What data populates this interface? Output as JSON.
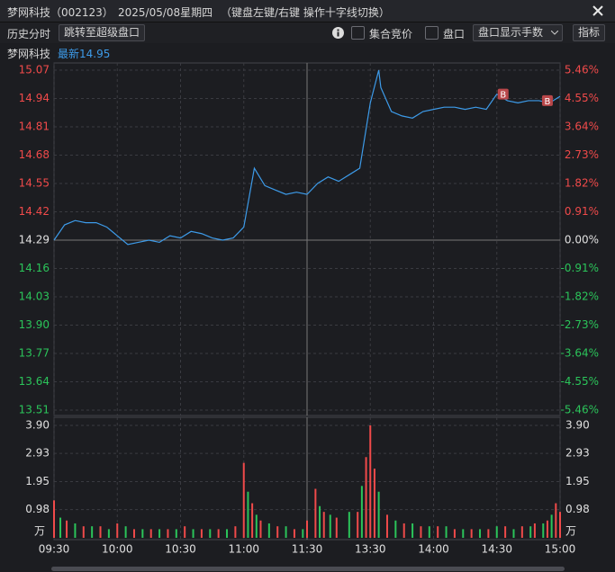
{
  "header": {
    "title": "梦网科技（002123）",
    "date": "2025/05/08星期四",
    "hint": "（键盘左键/右键 操作十字线切换）"
  },
  "toolbar": {
    "label": "历史分时",
    "jump": "跳转至超级盘口",
    "auction": "集合竞价",
    "orderbook": "盘口",
    "display": "盘口显示手数",
    "indicator": "指标"
  },
  "chart_data": [
    {
      "type": "line",
      "name": "梦网科技",
      "latest": "最新14.95",
      "baseline": 14.29,
      "series": [
        {
          "color": "#3d9be9",
          "x": [
            0,
            5,
            10,
            15,
            20,
            25,
            30,
            35,
            40,
            45,
            50,
            55,
            60,
            65,
            70,
            75,
            80,
            85,
            90,
            95,
            100,
            105,
            110,
            115,
            120,
            125,
            130,
            135,
            140,
            145,
            150,
            154,
            155,
            160,
            165,
            170,
            175,
            180,
            185,
            190,
            195,
            200,
            205,
            210,
            215,
            220,
            225,
            230,
            235,
            240
          ],
          "values": [
            14.29,
            14.36,
            14.38,
            14.37,
            14.37,
            14.35,
            14.31,
            14.27,
            14.28,
            14.29,
            14.28,
            14.31,
            14.3,
            14.33,
            14.32,
            14.3,
            14.29,
            14.3,
            14.35,
            14.62,
            14.54,
            14.52,
            14.5,
            14.51,
            14.5,
            14.55,
            14.58,
            14.56,
            14.59,
            14.62,
            14.92,
            15.07,
            14.99,
            14.88,
            14.86,
            14.85,
            14.88,
            14.89,
            14.9,
            14.9,
            14.89,
            14.9,
            14.89,
            14.96,
            14.93,
            14.92,
            14.93,
            14.93,
            14.92,
            14.95
          ]
        }
      ],
      "xlim": [
        0,
        240
      ],
      "ylim": [
        13.51,
        15.07
      ],
      "yticks": [
        15.07,
        14.94,
        14.81,
        14.68,
        14.55,
        14.42,
        14.29,
        14.16,
        14.03,
        {
          "value": 13.9,
          "label": "13.90"
        },
        13.77,
        13.64,
        13.51
      ],
      "y2lim": [
        -5.46,
        5.46
      ],
      "y2ticks": [
        {
          "value": 5.46,
          "label": "5.46%"
        },
        {
          "value": 4.55,
          "label": "4.55%"
        },
        {
          "value": 3.64,
          "label": "3.64%"
        },
        {
          "value": 2.73,
          "label": "2.73%"
        },
        {
          "value": 1.82,
          "label": "1.82%"
        },
        {
          "value": 0.91,
          "label": "0.91%"
        },
        {
          "value": 0,
          "label": "0.00%"
        },
        {
          "value": -0.91,
          "label": "-0.91%"
        },
        {
          "value": -1.82,
          "label": "-1.82%"
        },
        {
          "value": -2.73,
          "label": "-2.73%"
        },
        {
          "value": -3.64,
          "label": "-3.64%"
        },
        {
          "value": -4.55,
          "label": "-4.55%"
        },
        {
          "value": -5.46,
          "label": "-5.46%"
        }
      ],
      "annotations": [
        {
          "x": 213,
          "y": 14.96,
          "label": "B"
        },
        {
          "x": 234,
          "y": 14.93,
          "label": "B"
        }
      ],
      "grid": true
    },
    {
      "type": "bar",
      "y_unit": "万",
      "series": [
        {
          "color": "#f04a4a",
          "x": [
            0,
            6,
            14,
            22,
            30,
            38,
            46,
            54,
            62,
            70,
            78,
            86,
            90,
            94,
            98,
            106,
            114,
            120,
            124,
            128,
            134,
            144,
            148,
            150,
            152,
            158,
            166,
            174,
            182,
            190,
            198,
            206,
            214,
            222,
            228,
            234,
            238,
            240
          ],
          "values": [
            1.3,
            0.6,
            0.4,
            0.4,
            0.5,
            0.3,
            0.3,
            0.3,
            0.4,
            0.3,
            0.3,
            0.4,
            2.6,
            1.2,
            0.6,
            0.4,
            0.3,
            0.6,
            1.7,
            0.9,
            0.7,
            0.9,
            2.8,
            3.9,
            2.4,
            0.8,
            0.5,
            0.4,
            0.4,
            0.3,
            0.3,
            0.3,
            0.4,
            0.4,
            0.5,
            0.6,
            1.2,
            0.9
          ]
        },
        {
          "color": "#2bc45a",
          "x": [
            3,
            10,
            18,
            26,
            34,
            42,
            50,
            58,
            66,
            74,
            82,
            92,
            96,
            102,
            110,
            118,
            126,
            131,
            140,
            146,
            154,
            162,
            170,
            178,
            186,
            194,
            202,
            210,
            218,
            226,
            232,
            236
          ],
          "values": [
            0.7,
            0.5,
            0.4,
            0.3,
            0.4,
            0.3,
            0.3,
            0.3,
            0.3,
            0.3,
            0.3,
            1.6,
            0.8,
            0.5,
            0.4,
            0.3,
            1.1,
            0.8,
            0.9,
            1.8,
            1.6,
            0.6,
            0.5,
            0.4,
            0.4,
            0.3,
            0.3,
            0.4,
            0.3,
            0.4,
            0.5,
            0.8
          ]
        }
      ],
      "xlim": [
        0,
        240
      ],
      "ylim": [
        0,
        3.9
      ],
      "yticks": [
        {
          "value": 3.9,
          "label": "3.90"
        },
        2.93,
        1.95,
        0.98
      ],
      "xticks": [
        {
          "value": 0,
          "label": "09:30"
        },
        {
          "value": 30,
          "label": "10:00"
        },
        {
          "value": 60,
          "label": "10:30"
        },
        {
          "value": 90,
          "label": "11:00"
        },
        {
          "value": 120,
          "label": "11:30"
        },
        {
          "value": 150,
          "label": "13:30"
        },
        {
          "value": 180,
          "label": "14:00"
        },
        {
          "value": 210,
          "label": "14:30"
        },
        {
          "value": 240,
          "label": "15:00"
        }
      ],
      "grid": true
    }
  ]
}
